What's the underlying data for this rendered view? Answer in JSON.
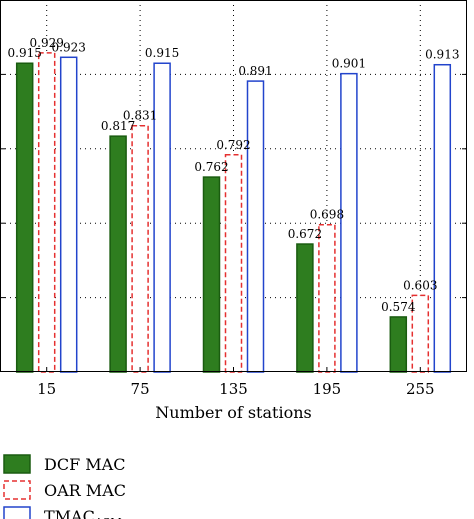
{
  "chart_data": {
    "type": "bar",
    "xlabel": "Number of stations",
    "ylabel": "",
    "title": "",
    "categories": [
      "15",
      "75",
      "135",
      "195",
      "255"
    ],
    "ylim": [
      0.5,
      1.0
    ],
    "grid": true,
    "legend_position": "bottom-left",
    "series": [
      {
        "name": "DCF MAC",
        "values": [
          0.915,
          0.817,
          0.762,
          0.672,
          0.574
        ],
        "labels": [
          "0.915",
          "0.817",
          "0.762",
          "0.672",
          "0.574"
        ],
        "fill": "#2e7d1f",
        "stroke": "#1a5c10",
        "style": "solid"
      },
      {
        "name": "OAR MAC",
        "values": [
          0.929,
          0.831,
          0.792,
          0.698,
          0.603
        ],
        "labels": [
          "0.929",
          "0.831",
          "0.792",
          "0.698",
          "0.603"
        ],
        "fill": "#ffffff",
        "stroke": "#e53030",
        "style": "dashed"
      },
      {
        "name": "TMAC",
        "name_subscript": "ASM",
        "values": [
          0.923,
          0.915,
          0.891,
          0.901,
          0.913
        ],
        "labels": [
          "0.923",
          "0.915",
          "0.891",
          "0.901",
          "0.913"
        ],
        "fill": "#ffffff",
        "stroke": "#2244cc",
        "style": "solid"
      }
    ]
  }
}
